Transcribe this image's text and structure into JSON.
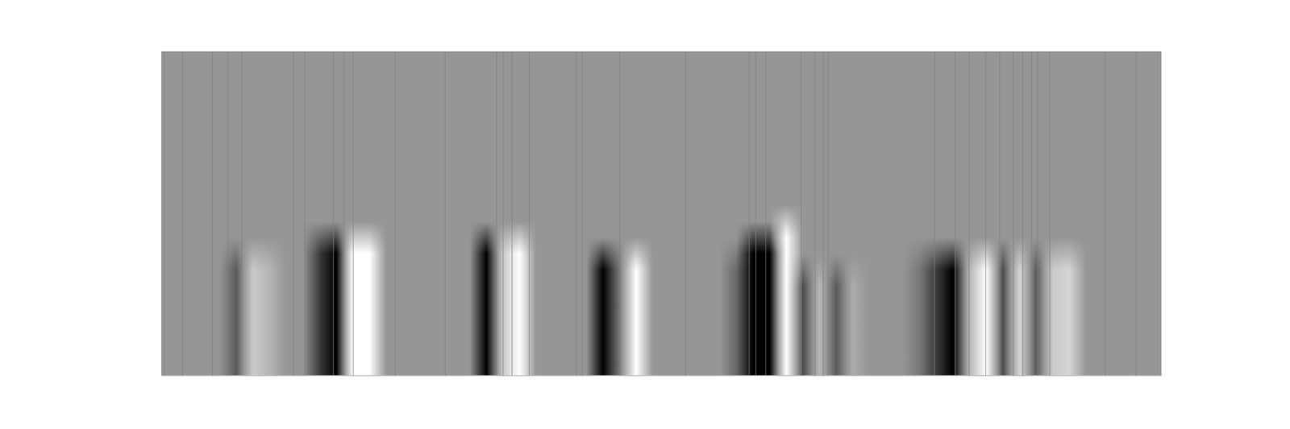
{
  "chart_data": {
    "type": "heatmap",
    "xlim": [
      0,
      1214
    ],
    "ylim": [
      0,
      395
    ],
    "xticks": [],
    "yticks": [],
    "tick_labels": false,
    "grid": false,
    "colors": [
      "#000000",
      "#969696",
      "#ffffff"
    ],
    "value_range": [
      -1,
      1
    ],
    "boundaries": {
      "color": "#7f7f7f",
      "x": [
        4,
        26,
        62,
        81,
        98,
        161,
        174,
        209,
        222,
        233,
        284,
        345,
        407,
        415,
        426,
        447,
        504,
        511,
        557,
        637,
        714,
        722,
        734,
        777,
        794,
        804,
        810,
        939,
        964,
        981,
        1001,
        1018,
        1035,
        1046,
        1057,
        1064,
        1079,
        1146,
        1184
      ]
    },
    "cells": [
      [
        0,
        0,
        0,
        0,
        0,
        0,
        0,
        0,
        0,
        0,
        0,
        0,
        0,
        0,
        0,
        0,
        0,
        0,
        0,
        0,
        0,
        0,
        0,
        0,
        0,
        0,
        0,
        0,
        0,
        0,
        0,
        0,
        0,
        0,
        0,
        0,
        0,
        0,
        0,
        0,
        0,
        0,
        0,
        0,
        0,
        0,
        0,
        0,
        0,
        0,
        0,
        0,
        0,
        0,
        0,
        0,
        0,
        0,
        0,
        0
      ],
      [
        0,
        0,
        0,
        0,
        0,
        0,
        0,
        0,
        0,
        0,
        0,
        0,
        0,
        0,
        0,
        0,
        0,
        0,
        0,
        0,
        0,
        0,
        0,
        0,
        0,
        0,
        0,
        0,
        0,
        0,
        0,
        0,
        0,
        0,
        0,
        0,
        0,
        0,
        0,
        0,
        0,
        0,
        0,
        0,
        0,
        0,
        0,
        0,
        0,
        0,
        0,
        0,
        0,
        0,
        0,
        0,
        0,
        0,
        0,
        0
      ],
      [
        0,
        0,
        0,
        0,
        0,
        0,
        0,
        0,
        0,
        0,
        0,
        0,
        0,
        0,
        0,
        0,
        0,
        0,
        0,
        0,
        0,
        0,
        0,
        0,
        0,
        0,
        0,
        0,
        0,
        0,
        0,
        0,
        0,
        0,
        0,
        0,
        0,
        0,
        0,
        0,
        0,
        0,
        0,
        0,
        0,
        0,
        0,
        0,
        0,
        0,
        0,
        0,
        0,
        0,
        0,
        0,
        0,
        0,
        0,
        0
      ],
      [
        0,
        0,
        0,
        0,
        0,
        0,
        0,
        0,
        0,
        0,
        0,
        0,
        0,
        0,
        0,
        0,
        0,
        0,
        0,
        0,
        0,
        0,
        0,
        0,
        0,
        0,
        0,
        0,
        0,
        0,
        0,
        0,
        0,
        0,
        0,
        0,
        0,
        0,
        0,
        0,
        0,
        0,
        0,
        0,
        0,
        0,
        0,
        0,
        0,
        0,
        0,
        0,
        0,
        0,
        0,
        0,
        0,
        0,
        0,
        0
      ],
      [
        0,
        0,
        0,
        0,
        0,
        0,
        0,
        0,
        0,
        0,
        0,
        0,
        0,
        0,
        0,
        0,
        0,
        0,
        0,
        0,
        0,
        0,
        0,
        0,
        0,
        0,
        0,
        0,
        0,
        0,
        0,
        0,
        0,
        0,
        0,
        0,
        0,
        0,
        0,
        0,
        0,
        0,
        0,
        0,
        0,
        0,
        0,
        0,
        0,
        0,
        0,
        0,
        0,
        0,
        0,
        0,
        0,
        0,
        0,
        0
      ],
      [
        0,
        0,
        0,
        0,
        0,
        0,
        0,
        0,
        0,
        0,
        0,
        0,
        0,
        0,
        0,
        0,
        0,
        0,
        0,
        0,
        0,
        0,
        0,
        0,
        0,
        0,
        0,
        0,
        0,
        0,
        0,
        0,
        0,
        0,
        0,
        0,
        0,
        0,
        0,
        0,
        0,
        0,
        0,
        0,
        0,
        0,
        0,
        0,
        0,
        0,
        0,
        0,
        0,
        0,
        0,
        0,
        0,
        0,
        0,
        0
      ],
      [
        0,
        0,
        0,
        0,
        0,
        0,
        0,
        0,
        0,
        0,
        0,
        0,
        0,
        0,
        0,
        0,
        0,
        0,
        0,
        0,
        0,
        0,
        0,
        0,
        0,
        0,
        0,
        0,
        0,
        0,
        0,
        0,
        0,
        0,
        0,
        0,
        0,
        0,
        0,
        0,
        0,
        0,
        0,
        0,
        0,
        0,
        0,
        0,
        0,
        0,
        0,
        0,
        0,
        0,
        0,
        0,
        0,
        0,
        0,
        0
      ],
      [
        0,
        0,
        0,
        0,
        0,
        0,
        0,
        0,
        0,
        0,
        0,
        0,
        0,
        0,
        0,
        0,
        0,
        0,
        0,
        0,
        0,
        0,
        0,
        0,
        0,
        0,
        0,
        0,
        0,
        0,
        0,
        0,
        0,
        0,
        0,
        0,
        0,
        0,
        0,
        0,
        0,
        0,
        0,
        0,
        0,
        0,
        0,
        0,
        0,
        0,
        0,
        0,
        0,
        0,
        0,
        0,
        0,
        0,
        0,
        0
      ],
      [
        0,
        0,
        0,
        0,
        0,
        0,
        0,
        0,
        0,
        0,
        0,
        0,
        0,
        0,
        0,
        0,
        0,
        0,
        0,
        0,
        0,
        0,
        0,
        0,
        0,
        0,
        0,
        0,
        0,
        0,
        0,
        0,
        0,
        0,
        0,
        0,
        0,
        0,
        0,
        0,
        0,
        0,
        0,
        0,
        0,
        0,
        0,
        0,
        0,
        0,
        0,
        0,
        0,
        0,
        0,
        0,
        0,
        0,
        0,
        0
      ],
      [
        0,
        0,
        0,
        0,
        0,
        0,
        0,
        0,
        0,
        0,
        0,
        0,
        0,
        0,
        0,
        0,
        0,
        0,
        0,
        0,
        0,
        0,
        0,
        0,
        0,
        0,
        0,
        0,
        0,
        0,
        0,
        0,
        0,
        0,
        0,
        0,
        0,
        0,
        0,
        0,
        0,
        0,
        0,
        0,
        0,
        0,
        0,
        0,
        0,
        0,
        0,
        0,
        0,
        0,
        0,
        0,
        0,
        0,
        0,
        0
      ],
      [
        0,
        0,
        0,
        0,
        0,
        0,
        0,
        0,
        0,
        0,
        0,
        0,
        0,
        0,
        0,
        0,
        0,
        0,
        0,
        0,
        0,
        0,
        0,
        0,
        0,
        0,
        0,
        0,
        0,
        0,
        0,
        0,
        0,
        0,
        0,
        0,
        0,
        0.5,
        0,
        0,
        0,
        0,
        0,
        0,
        0,
        0,
        0,
        0,
        0,
        0,
        0,
        0,
        0,
        0,
        0,
        0,
        0,
        0,
        0,
        0
      ],
      [
        0,
        0,
        0,
        0,
        0,
        0,
        0,
        0,
        0,
        -0.3,
        -0.5,
        0.5,
        0.5,
        0,
        0,
        0,
        0,
        0,
        0,
        -0.5,
        0.25,
        0.5,
        0,
        0,
        0,
        0,
        0,
        0,
        0,
        0,
        0,
        0,
        0,
        0,
        0,
        -0.5,
        -0.5,
        1,
        0,
        0,
        0,
        0,
        0,
        0,
        0,
        0,
        0,
        0,
        0,
        0,
        0,
        0,
        0,
        0,
        0,
        0,
        0,
        0,
        0,
        0
      ],
      [
        0,
        0,
        0,
        0,
        -0.2,
        0.25,
        0.15,
        0,
        0,
        -0.6,
        -1,
        1,
        1,
        0,
        0,
        0,
        0,
        0,
        0,
        -1,
        0.5,
        1,
        0,
        0,
        0,
        0,
        -0.5,
        -0.1,
        0.5,
        0,
        0,
        0,
        0,
        0,
        -0.15,
        -1,
        -1,
        1,
        0,
        0,
        0,
        0,
        0,
        0,
        0,
        -0.1,
        -0.3,
        -0.5,
        0.15,
        0.5,
        -0.25,
        0.3,
        -0.2,
        0.25,
        0.3,
        0,
        0,
        0,
        0,
        0
      ],
      [
        0,
        0,
        0,
        0,
        -0.4,
        0.5,
        0.3,
        0,
        0,
        -0.6,
        -1,
        1,
        1,
        0,
        0,
        0,
        0,
        0,
        0,
        -1,
        0.5,
        1,
        0,
        0,
        0,
        0,
        -1,
        -0.2,
        1,
        0,
        0,
        0,
        0,
        0,
        -0.3,
        -1,
        -1,
        1,
        -0.25,
        0.15,
        -0.2,
        0.1,
        0,
        0,
        0,
        -0.2,
        -0.6,
        -1,
        0.3,
        1,
        -0.5,
        0.6,
        -0.4,
        0.5,
        0.6,
        0,
        0,
        0,
        0,
        0
      ],
      [
        0,
        0,
        0,
        0,
        -0.4,
        0.5,
        0.3,
        0,
        0,
        -0.6,
        -1,
        1,
        1,
        0,
        0,
        0,
        0,
        0,
        0,
        -1,
        0.5,
        1,
        0,
        0,
        0,
        0,
        -1,
        -0.2,
        1,
        0,
        0,
        0,
        0,
        0,
        -0.3,
        -1,
        -1,
        1,
        -0.5,
        0.3,
        -0.4,
        0.2,
        0,
        0,
        0,
        -0.2,
        -0.6,
        -1,
        0.3,
        1,
        -0.5,
        0.6,
        -0.4,
        0.5,
        0.6,
        0,
        0,
        0,
        0,
        0
      ],
      [
        0,
        0,
        0,
        0,
        -0.4,
        0.5,
        0.3,
        0,
        0,
        -0.6,
        -1,
        1,
        1,
        0,
        0,
        0,
        0,
        0,
        0,
        -1,
        0.5,
        1,
        0,
        0,
        0,
        0,
        -1,
        -0.2,
        1,
        0,
        0,
        0,
        0,
        0,
        -0.3,
        -1,
        -1,
        1,
        -0.5,
        0.3,
        -0.4,
        0.2,
        0,
        0,
        0,
        -0.2,
        -0.6,
        -1,
        0.3,
        1,
        -0.5,
        0.6,
        -0.4,
        0.5,
        0.6,
        0,
        0,
        0,
        0,
        0
      ],
      [
        0,
        0,
        0,
        0,
        -0.4,
        0.5,
        0.3,
        0,
        0,
        -0.6,
        -1,
        1,
        1,
        0,
        0,
        0,
        0,
        0,
        0,
        -1,
        0.5,
        1,
        0,
        0,
        0,
        0,
        -1,
        -0.2,
        1,
        0,
        0,
        0,
        0,
        0,
        -0.3,
        -1,
        -1,
        1,
        -0.5,
        0.3,
        -0.4,
        0.2,
        0,
        0,
        0,
        -0.2,
        -0.6,
        -1,
        0.3,
        1,
        -0.5,
        0.6,
        -0.4,
        0.5,
        0.6,
        0,
        0,
        0,
        0,
        0
      ],
      [
        0,
        0,
        0,
        0,
        -0.4,
        0.5,
        0.3,
        0,
        0,
        -0.6,
        -1,
        1,
        1,
        0,
        0,
        0,
        0,
        0,
        0,
        -1,
        0.5,
        1,
        0,
        0,
        0,
        0,
        -1,
        -0.2,
        1,
        0,
        0,
        0,
        0,
        0,
        -0.3,
        -1,
        -1,
        1,
        -0.5,
        0.3,
        -0.4,
        0.2,
        0,
        0,
        0,
        -0.2,
        -0.6,
        -1,
        0.3,
        1,
        -0.5,
        0.6,
        -0.4,
        0.5,
        0.6,
        0,
        0,
        0,
        0,
        0
      ],
      [
        0,
        0,
        0,
        0,
        -0.4,
        0.5,
        0.3,
        0,
        0,
        -0.6,
        -1,
        1,
        1,
        0,
        0,
        0,
        0,
        0,
        0,
        -1,
        0.5,
        1,
        0,
        0,
        0,
        0,
        -1,
        -0.2,
        1,
        0,
        0,
        0,
        0,
        0,
        -0.3,
        -1,
        -1,
        1,
        -0.5,
        0.3,
        -0.4,
        0.2,
        0,
        0,
        0,
        -0.2,
        -0.6,
        -1,
        0.3,
        1,
        -0.5,
        0.6,
        -0.4,
        0.5,
        0.6,
        0,
        0,
        0,
        0,
        0
      ],
      [
        0,
        0,
        0,
        0,
        -0.4,
        0.5,
        0.3,
        0,
        0,
        -0.6,
        -1,
        1,
        1,
        0,
        0,
        0,
        0,
        0,
        0,
        -1,
        0.5,
        1,
        0,
        0,
        0,
        0,
        -1,
        -0.2,
        1,
        0,
        0,
        0,
        0,
        0,
        -0.3,
        -1,
        -1,
        1,
        -0.5,
        0.3,
        -0.4,
        0.2,
        0,
        0,
        0,
        -0.2,
        -0.6,
        -1,
        0.3,
        1,
        -0.5,
        0.6,
        -0.4,
        0.5,
        0.6,
        0,
        0,
        0,
        0,
        0
      ]
    ]
  }
}
